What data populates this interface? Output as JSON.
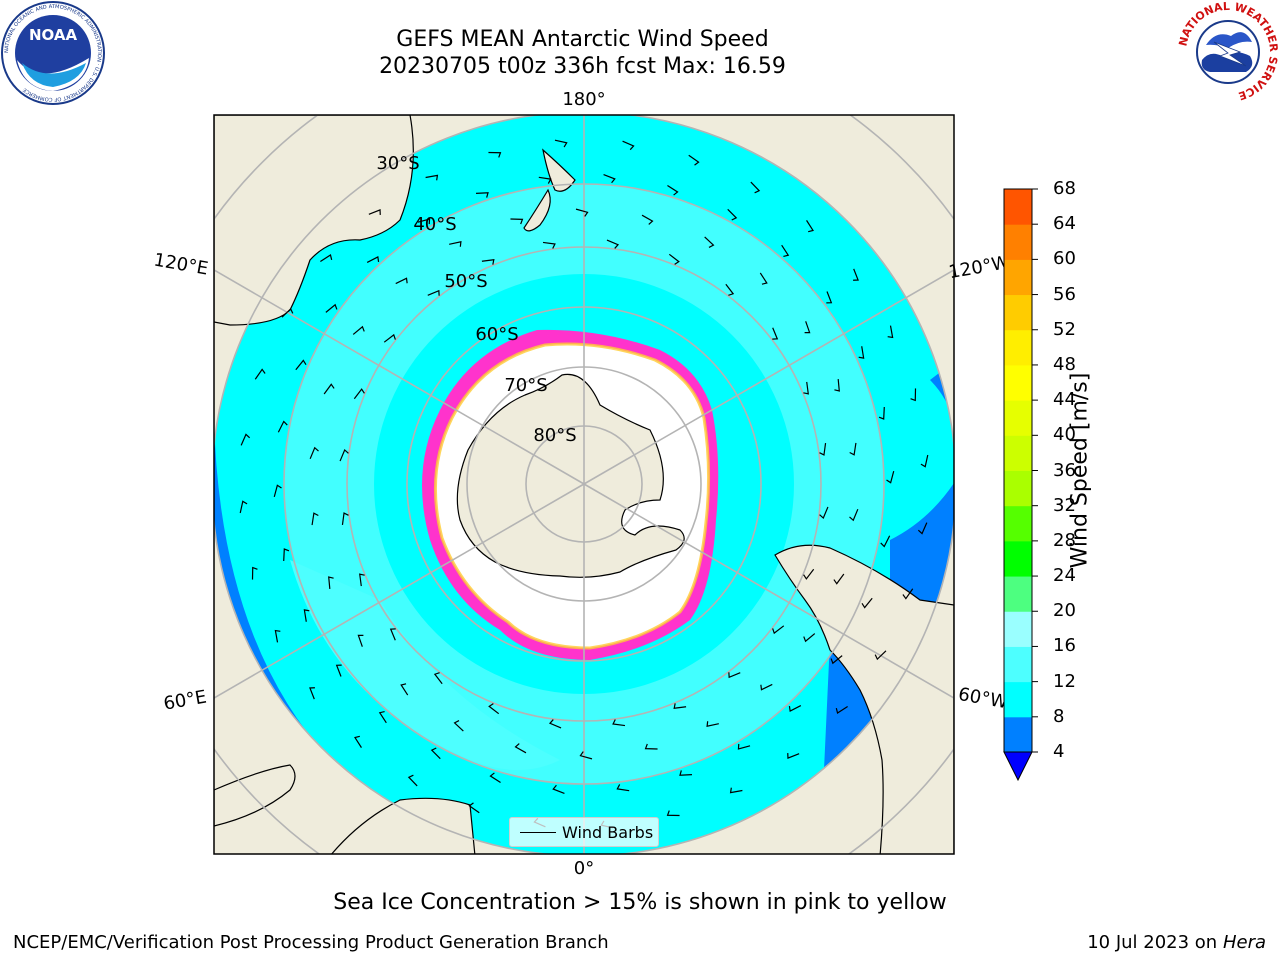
{
  "header": {
    "title_line1": "GEFS MEAN Antarctic Wind Speed",
    "title_line2": "20230705 t00z 336h fcst   Max: 16.59"
  },
  "logos": {
    "noaa": {
      "text": "NOAA",
      "ring_text": "NATIONAL OCEANIC AND ATMOSPHERIC ADMINISTRATION · U.S. DEPARTMENT OF COMMERCE"
    },
    "nws": {
      "ring_text": "NATIONAL WEATHER SERVICE"
    }
  },
  "map": {
    "projection": "south polar stereographic",
    "lon_labels": {
      "top": "180°",
      "bottom": "0°",
      "upper_left": "120°E",
      "lower_left": "60°E",
      "upper_right": "120°W",
      "lower_right": "60°W"
    },
    "lat_labels": [
      "30°S",
      "40°S",
      "50°S",
      "60°S",
      "70°S",
      "80°S"
    ],
    "legend_label": "Wind Barbs",
    "colors": {
      "land": "#efecdc",
      "ocean_8_12": "#00ffff",
      "ocean_12_16": "#4dffff",
      "ocean_4_8": "#0080ff",
      "sea_ice": "#ff33cc",
      "grid": "#b4b4b4"
    }
  },
  "colorbar": {
    "label": "Wind Speed [m/s]",
    "ticks": [
      "68",
      "64",
      "60",
      "56",
      "52",
      "48",
      "44",
      "40",
      "36",
      "32",
      "28",
      "24",
      "20",
      "16",
      "12",
      "8",
      "4"
    ],
    "colors_low_to_high": [
      "#0080ff",
      "#00ffff",
      "#4dffff",
      "#9affff",
      "#4dff80",
      "#00ff00",
      "#55ff00",
      "#aaff00",
      "#ccff00",
      "#e6ff00",
      "#ffff00",
      "#ffee00",
      "#ffcc00",
      "#ffa500",
      "#ff8000",
      "#ff5500",
      "#ff2a00",
      "#ff0000"
    ],
    "extend_color": "#0000ff"
  },
  "notes": {
    "sea_ice": "Sea Ice Concentration > 15% is shown in pink to yellow",
    "footer_left": "NCEP/EMC/Verification Post Processing Product Generation Branch",
    "footer_date": "10 Jul 2023 on ",
    "footer_machine": "Hera"
  }
}
